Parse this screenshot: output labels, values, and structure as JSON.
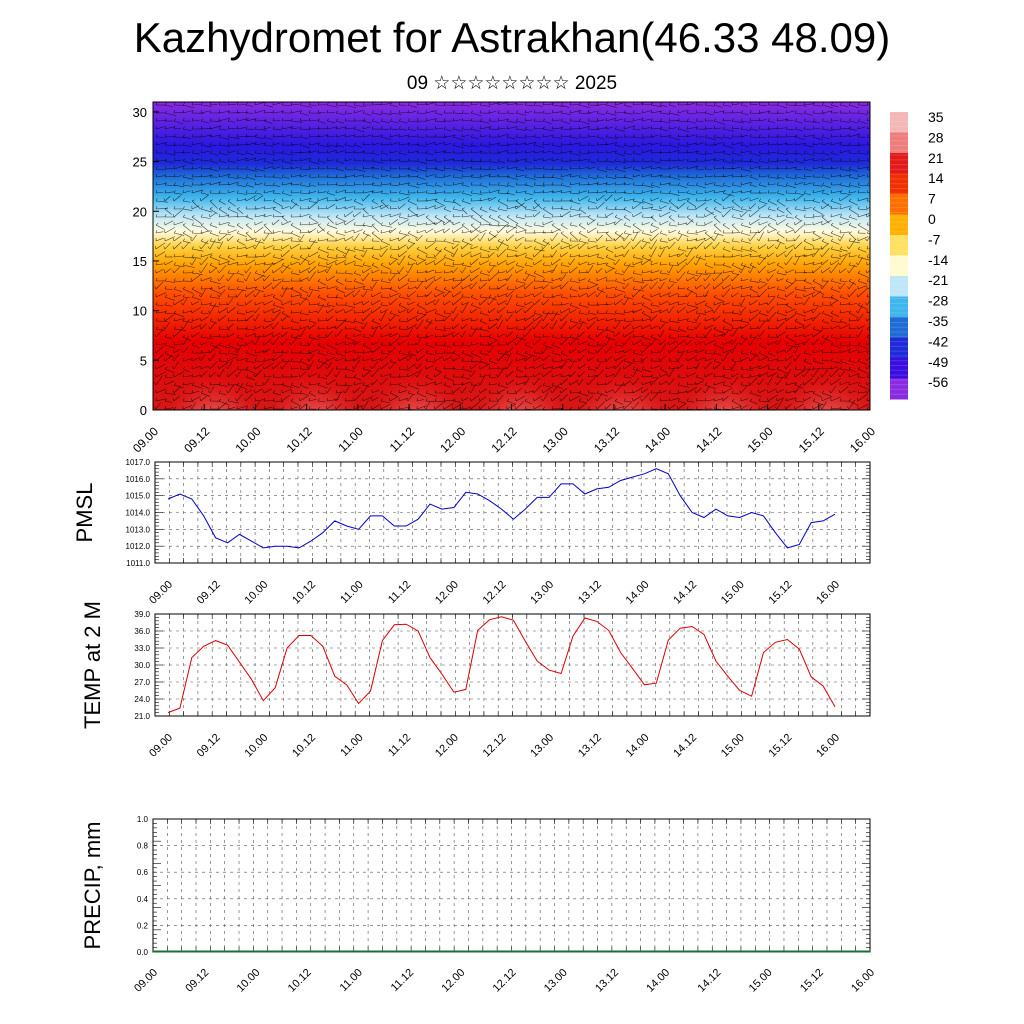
{
  "title": "Kazhydromet for Astrakhan(46.33 48.09)",
  "subtitle": "09 ☆☆☆☆☆☆☆☆ 2025",
  "colorbar": {
    "labels": [
      "35",
      "28",
      "21",
      "14",
      "7",
      "0",
      "-7",
      "-14",
      "-21",
      "-28",
      "-35",
      "-42",
      "-49",
      "-56"
    ],
    "colors": [
      "#f4b6b6",
      "#ee7d7d",
      "#e41a1a",
      "#f03000",
      "#ff7000",
      "#ffb000",
      "#ffe060",
      "#fffbd0",
      "#bfe6f7",
      "#3fb6ec",
      "#1f6cd6",
      "#1f2ad8",
      "#3a0ee0",
      "#8a2be2"
    ]
  },
  "chart_data": [
    {
      "type": "heatmap",
      "name": "wind-temperature-cross-section",
      "ylim": [
        0,
        31
      ],
      "yticks": [
        "0",
        "5",
        "10",
        "15",
        "20",
        "25",
        "30"
      ],
      "xlim": [
        0,
        7
      ],
      "xticks": [
        "09.00",
        "09.12",
        "10.00",
        "10.12",
        "11.00",
        "11.12",
        "12.00",
        "12.12",
        "13.00",
        "13.12",
        "14.00",
        "14.12",
        "15.00",
        "15.12",
        "16.00"
      ]
    },
    {
      "type": "line",
      "name": "pmsl",
      "ylabel": "PMSL",
      "ylim": [
        1011.0,
        1017.0
      ],
      "yticks": [
        "1011.0",
        "1012.0",
        "1013.0",
        "1014.0",
        "1015.0",
        "1016.0",
        "1017.0"
      ],
      "xticks": [
        "09.00",
        "09.12",
        "10.00",
        "10.12",
        "11.00",
        "11.12",
        "12.00",
        "12.12",
        "13.00",
        "13.12",
        "14.00",
        "14.12",
        "15.00",
        "15.12",
        "16.00"
      ],
      "color": "#0000cc",
      "values": [
        1014.8,
        1015.1,
        1014.8,
        1013.8,
        1012.5,
        1012.2,
        1012.7,
        1012.3,
        1011.9,
        1012.0,
        1012.0,
        1011.9,
        1012.3,
        1012.8,
        1013.5,
        1013.2,
        1013.0,
        1013.8,
        1013.8,
        1013.2,
        1013.2,
        1013.6,
        1014.5,
        1014.2,
        1014.3,
        1015.2,
        1015.1,
        1014.7,
        1014.2,
        1013.6,
        1014.2,
        1014.9,
        1014.9,
        1015.7,
        1015.7,
        1015.1,
        1015.4,
        1015.5,
        1015.9,
        1016.1,
        1016.3,
        1016.6,
        1016.3,
        1015.0,
        1014.0,
        1013.7,
        1014.2,
        1013.8,
        1013.7,
        1014.0,
        1013.8,
        1012.8,
        1011.9,
        1012.1,
        1013.4,
        1013.5,
        1013.9
      ]
    },
    {
      "type": "line",
      "name": "temp-2m",
      "ylabel": "TEMP at 2 M",
      "ylim": [
        21.0,
        39.0
      ],
      "yticks": [
        "21.0",
        "24.0",
        "27.0",
        "30.0",
        "33.0",
        "36.0",
        "39.0"
      ],
      "xticks": [
        "09.00",
        "09.12",
        "10.00",
        "10.12",
        "11.00",
        "11.12",
        "12.00",
        "12.12",
        "13.00",
        "13.12",
        "14.00",
        "14.12",
        "15.00",
        "15.12",
        "16.00"
      ],
      "color": "#dd0000",
      "values": [
        21.6,
        22.4,
        31.3,
        33.3,
        34.3,
        33.5,
        30.5,
        27.5,
        23.7,
        26.0,
        33.0,
        35.2,
        35.2,
        33.3,
        28.0,
        26.5,
        23.2,
        25.4,
        34.3,
        37.1,
        37.2,
        36.0,
        31.3,
        28.4,
        25.2,
        25.7,
        36.1,
        38.0,
        38.5,
        37.9,
        34.2,
        30.7,
        29.1,
        28.5,
        35.1,
        38.3,
        37.7,
        36.1,
        32.2,
        29.4,
        26.5,
        26.8,
        34.4,
        36.5,
        36.8,
        35.4,
        30.7,
        28.0,
        25.5,
        24.5,
        32.2,
        34.0,
        34.5,
        32.8,
        27.9,
        26.3,
        22.6
      ]
    },
    {
      "type": "bar",
      "name": "precip",
      "ylabel": "PRECIP, mm",
      "ylim": [
        0.0,
        1.0
      ],
      "yticks": [
        "0.0",
        "0.2",
        "0.4",
        "0.6",
        "0.8",
        "1.0"
      ],
      "xticks": [
        "09.00",
        "09.12",
        "10.00",
        "10.12",
        "11.00",
        "11.12",
        "12.00",
        "12.12",
        "13.00",
        "13.12",
        "14.00",
        "14.12",
        "15.00",
        "15.12",
        "16.00"
      ],
      "values": [
        0,
        0,
        0,
        0,
        0,
        0,
        0,
        0,
        0,
        0,
        0,
        0,
        0,
        0,
        0,
        0,
        0,
        0,
        0,
        0,
        0,
        0,
        0,
        0,
        0,
        0,
        0,
        0,
        0,
        0,
        0,
        0,
        0,
        0,
        0,
        0,
        0,
        0,
        0,
        0,
        0,
        0,
        0,
        0,
        0,
        0,
        0,
        0,
        0,
        0,
        0,
        0,
        0,
        0,
        0,
        0,
        0
      ]
    }
  ]
}
